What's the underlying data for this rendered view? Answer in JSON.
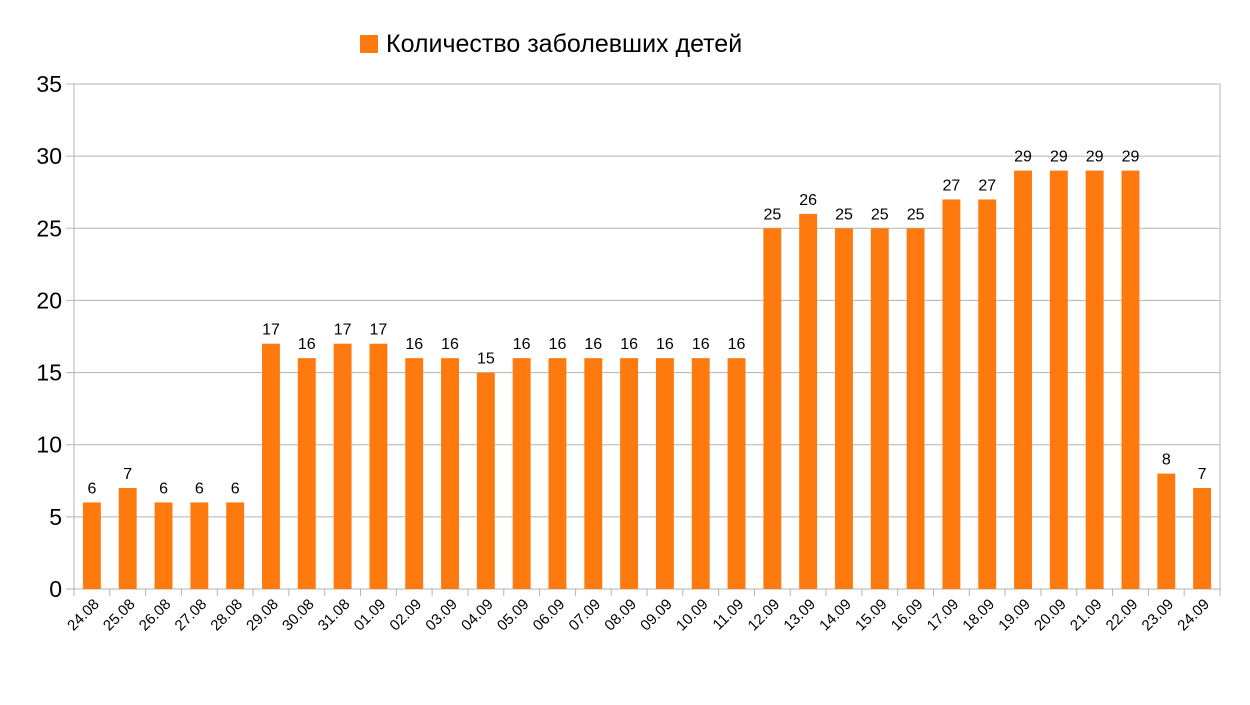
{
  "chart_data": {
    "type": "bar",
    "title": "",
    "xlabel": "",
    "ylabel": "",
    "ylim": [
      0,
      35
    ],
    "yticks": [
      0,
      5,
      10,
      15,
      20,
      25,
      30,
      35
    ],
    "grid": true,
    "legend_position": "top",
    "categories": [
      "24.08",
      "25.08",
      "26.08",
      "27.08",
      "28.08",
      "29.08",
      "30.08",
      "31.08",
      "01.09",
      "02.09",
      "03.09",
      "04.09",
      "05.09",
      "06.09",
      "07.09",
      "08.09",
      "09.09",
      "10.09",
      "11.09",
      "12.09",
      "13.09",
      "14.09",
      "15.09",
      "16.09",
      "17.09",
      "18.09",
      "19.09",
      "20.09",
      "21.09",
      "22.09",
      "23.09",
      "24.09"
    ],
    "series": [
      {
        "name": "Количество заболевших детей",
        "color": "#ff7a0e",
        "values": [
          6,
          7,
          6,
          6,
          6,
          17,
          16,
          17,
          17,
          16,
          16,
          15,
          16,
          16,
          16,
          16,
          16,
          16,
          16,
          25,
          26,
          25,
          25,
          25,
          27,
          27,
          29,
          29,
          29,
          29,
          8,
          7
        ]
      }
    ]
  }
}
